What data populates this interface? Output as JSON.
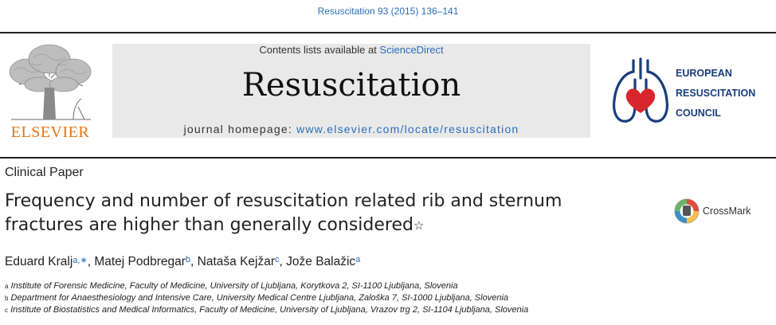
{
  "header": {
    "citation": "Resuscitation 93 (2015) 136–141"
  },
  "publisher": {
    "name": "ELSEVIER"
  },
  "journal_band": {
    "contents_prefix": "Contents lists available at",
    "contents_link": "ScienceDirect",
    "title": "Resuscitation",
    "homepage_label": "journal homepage:",
    "homepage_url": "www.elsevier.com/locate/resuscitation"
  },
  "society": {
    "line1": "EUROPEAN",
    "line2": "RESUSCITATION",
    "line3": "COUNCIL"
  },
  "article": {
    "type": "Clinical Paper",
    "title_line1": "Frequency and number of resuscitation related rib and sternum",
    "title_line2": "fractures are higher than generally considered",
    "title_mark": "☆",
    "crossmark_label": "CrossMark"
  },
  "authors": [
    {
      "name": "Eduard Kralj",
      "sup": "a,∗",
      "sep": ", "
    },
    {
      "name": "Matej Podbregar",
      "sup": "b",
      "sep": ", "
    },
    {
      "name": "Nataša Kejžar",
      "sup": "c",
      "sep": ", "
    },
    {
      "name": "Jože Balažic",
      "sup": "a",
      "sep": ""
    }
  ],
  "affiliations": [
    {
      "mark": "a",
      "text": "Institute of Forensic Medicine, Faculty of Medicine, University of Ljubljana, Korytkova 2, SI-1100 Ljubljana, Slovenia"
    },
    {
      "mark": "b",
      "text": "Department for Anaesthesiology and Intensive Care, University Medical Centre Ljubljana, Zaloška 7, SI-1000 Ljubljana, Slovenia"
    },
    {
      "mark": "c",
      "text": "Institute of Biostatistics and Medical Informatics, Faculty of Medicine, University of Ljubljana, Vrazov trg 2, SI-1104 Ljubljana, Slovenia"
    }
  ],
  "colors": {
    "link_blue": "#2a6ebb",
    "elsevier_orange": "#e87511",
    "erc_navy": "#1a3d7c",
    "erc_red": "#d9262c",
    "band_gray": "#e9e9e9"
  }
}
